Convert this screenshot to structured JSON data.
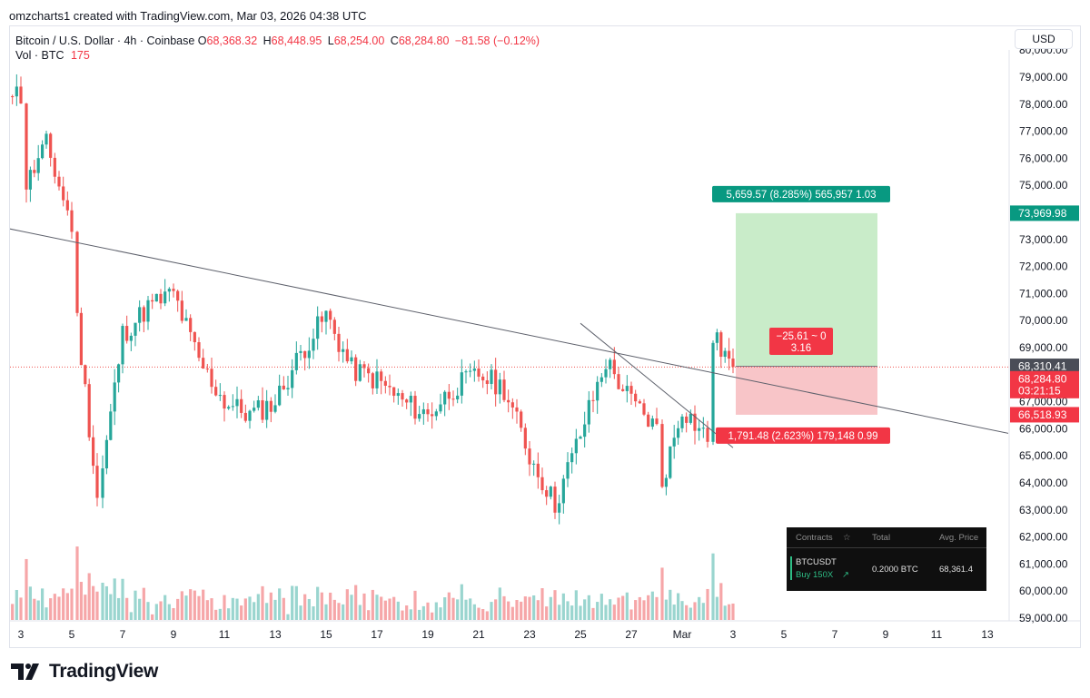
{
  "header": {
    "credit": "omzcharts1 created with TradingView.com, Mar 03, 2026 04:38 UTC"
  },
  "legend": {
    "symbol": "Bitcoin / U.S. Dollar · 4h · Coinbase",
    "open_label": "O",
    "open": "68,368.32",
    "high_label": "H",
    "high": "68,448.95",
    "low_label": "L",
    "low": "68,254.00",
    "close_label": "C",
    "close": "68,284.80",
    "change": "−81.58 (−0.12%)",
    "volume_label": "Vol · BTC",
    "volume": "175"
  },
  "currency_button": "USD",
  "price_axis": {
    "labels": [
      "80,000.00",
      "79,000.00",
      "78,000.00",
      "77,000.00",
      "76,000.00",
      "75,000.00",
      "74,000.00",
      "73,000.00",
      "72,000.00",
      "71,000.00",
      "70,000.00",
      "69,000.00",
      "68,000.00",
      "67,000.00",
      "66,000.00",
      "65,000.00",
      "64,000.00",
      "63,000.00",
      "62,000.00",
      "61,000.00",
      "60,000.00",
      "59,000.00"
    ]
  },
  "time_axis": {
    "labels": [
      "3",
      "5",
      "7",
      "9",
      "11",
      "13",
      "15",
      "17",
      "19",
      "21",
      "23",
      "25",
      "27",
      "Mar",
      "3",
      "5",
      "7",
      "9",
      "11",
      "13"
    ]
  },
  "price_tags": {
    "target": "73,969.98",
    "entry": "68,310.41",
    "last": "68,284.80",
    "countdown": "03:21:15",
    "stop": "66,518.93"
  },
  "position_tool": {
    "target_box": "5,659.57 (8.285%) 565,957 1.03",
    "open_line1": "−25.61 ~ 0",
    "open_line2": "3.16",
    "stop_box": "1,791.48 (2.623%) 179,148 0.99"
  },
  "positions_panel": {
    "col_contracts": "Contracts",
    "col_total": "Total",
    "col_avg": "Avg. Price",
    "symbol": "BTCUSDT",
    "side": "Buy 150X",
    "total": "0.2000 BTC",
    "avg_price": "68,361.4"
  },
  "brand": "TradingView",
  "colors": {
    "up": "#26a69a",
    "down": "#ef5350",
    "target_tag": "#089981",
    "stop_tag": "#f23645",
    "profit_zone": "#c9ecc9",
    "loss_zone": "#f8c5c8"
  },
  "chart_data": {
    "type": "candlestick",
    "symbol": "BTC/USD",
    "interval": "4h",
    "exchange": "Coinbase",
    "ylim": [
      59000,
      80000
    ],
    "x_ticks": [
      "3",
      "5",
      "7",
      "9",
      "11",
      "13",
      "15",
      "17",
      "19",
      "21",
      "23",
      "25",
      "27",
      "Mar",
      "3",
      "5",
      "7",
      "9",
      "11",
      "13"
    ],
    "price_path_approx": [
      {
        "date": "Feb 2",
        "price": 79000
      },
      {
        "date": "Feb 3",
        "price": 78300
      },
      {
        "date": "Feb 3",
        "price": 75000
      },
      {
        "date": "Feb 4",
        "price": 76500
      },
      {
        "date": "Feb 5",
        "price": 73500
      },
      {
        "date": "Feb 5",
        "price": 70000
      },
      {
        "date": "Feb 6",
        "price": 63500
      },
      {
        "date": "Feb 6",
        "price": 64500
      },
      {
        "date": "Feb 7",
        "price": 69500
      },
      {
        "date": "Feb 8",
        "price": 70500
      },
      {
        "date": "Feb 9",
        "price": 71000
      },
      {
        "date": "Feb 10",
        "price": 68500
      },
      {
        "date": "Feb 11",
        "price": 67000
      },
      {
        "date": "Feb 12",
        "price": 66500
      },
      {
        "date": "Feb 13",
        "price": 67000
      },
      {
        "date": "Feb 14",
        "price": 68800
      },
      {
        "date": "Feb 15",
        "price": 70200
      },
      {
        "date": "Feb 16",
        "price": 68200
      },
      {
        "date": "Feb 17",
        "price": 67800
      },
      {
        "date": "Feb 18",
        "price": 67000
      },
      {
        "date": "Feb 19",
        "price": 66500
      },
      {
        "date": "Feb 20",
        "price": 67500
      },
      {
        "date": "Feb 21",
        "price": 68000
      },
      {
        "date": "Feb 22",
        "price": 67500
      },
      {
        "date": "Feb 23",
        "price": 65000
      },
      {
        "date": "Feb 24",
        "price": 63200
      },
      {
        "date": "Feb 25",
        "price": 65800
      },
      {
        "date": "Feb 26",
        "price": 68500
      },
      {
        "date": "Feb 27",
        "price": 67000
      },
      {
        "date": "Feb 28",
        "price": 66000
      },
      {
        "date": "Feb 28",
        "price": 64000
      },
      {
        "date": "Mar 1",
        "price": 66800
      },
      {
        "date": "Mar 2",
        "price": 65600
      },
      {
        "date": "Mar 2",
        "price": 69400
      },
      {
        "date": "Mar 3",
        "price": 68285
      }
    ],
    "trendlines": [
      {
        "from": {
          "date": "Feb 2",
          "price": 73500
        },
        "to": {
          "date": "Mar 14",
          "price": 65800
        }
      },
      {
        "from": {
          "date": "Feb 25",
          "price": 69900
        },
        "to": {
          "date": "Mar 3",
          "price": 65300
        }
      }
    ],
    "long_position": {
      "entry": 68310.41,
      "target": 73969.98,
      "stop": 66518.93
    },
    "volume_series_label": "Vol · BTC",
    "last_volume": 175,
    "grid": false
  }
}
